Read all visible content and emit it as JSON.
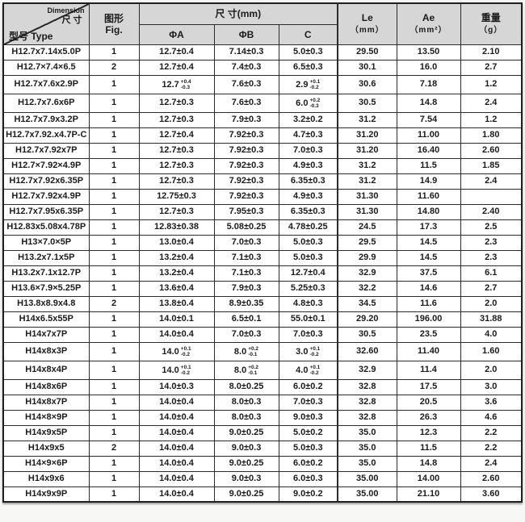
{
  "colors": {
    "header_bg": "#d6d6d6",
    "border": "#2b2b2b"
  },
  "header": {
    "dimension_en": "Dimension",
    "dimension_cn": "尺寸",
    "type_label": "型号 Type",
    "fig_cn": "图形",
    "fig_en": "Fig.",
    "dim_mm": "尺 寸(mm)",
    "phiA": "ΦA",
    "phiB": "ΦB",
    "c": "C",
    "le": "Le",
    "le_unit": "（mm）",
    "ae": "Ae",
    "ae_unit": "（mm²）",
    "wt": "重量",
    "wt_unit": "（g）"
  },
  "columns": [
    "type",
    "fig",
    "phiA",
    "phiB",
    "c",
    "le",
    "ae",
    "wt"
  ],
  "rows": [
    [
      "H12.7x7.14x5.0P",
      "1",
      "12.7±0.4",
      "7.14±0.3",
      "5.0±0.3",
      "29.50",
      "13.50",
      "2.10"
    ],
    [
      "H12.7×7.4×6.5",
      "2",
      "12.7±0.4",
      "7.4±0.3",
      "6.5±0.3",
      "30.1",
      "16.0",
      "2.7"
    ],
    [
      "H12.7x7.6x2.9P",
      "1",
      {
        "v": "12.7",
        "sup": "+0.4",
        "sub": "-0.3"
      },
      "7.6±0.3",
      {
        "v": "2.9",
        "sup": "+0.1",
        "sub": "-0.2"
      },
      "30.6",
      "7.18",
      "1.2"
    ],
    [
      "H12.7x7.6x6P",
      "1",
      "12.7±0.3",
      "7.6±0.3",
      {
        "v": "6.0",
        "sup": "+0.2",
        "sub": "-0.3"
      },
      "30.5",
      "14.8",
      "2.4"
    ],
    [
      "H12.7x7.9x3.2P",
      "1",
      "12.7±0.3",
      "7.9±0.3",
      "3.2±0.2",
      "31.2",
      "7.54",
      "1.2"
    ],
    [
      "H12.7x7.92.x4.7P-C",
      "1",
      "12.7±0.4",
      "7.92±0.3",
      "4.7±0.3",
      "31.20",
      "11.00",
      "1.80"
    ],
    [
      "H12.7x7.92x7P",
      "1",
      "12.7±0.3",
      "7.92±0.3",
      "7.0±0.3",
      "31.20",
      "16.40",
      "2.60"
    ],
    [
      "H12.7×7.92×4.9P",
      "1",
      "12.7±0.3",
      "7.92±0.3",
      "4.9±0.3",
      "31.2",
      "11.5",
      "1.85"
    ],
    [
      "H12.7x7.92x6.35P",
      "1",
      "12.7±0.3",
      "7.92±0.3",
      "6.35±0.3",
      "31.2",
      "14.9",
      "2.4"
    ],
    [
      "H12.7x7.92x4.9P",
      "1",
      "12.75±0.3",
      "7.92±0.3",
      "4.9±0.3",
      "31.30",
      "11.60",
      ""
    ],
    [
      "H12.7x7.95x6.35P",
      "1",
      "12.7±0.3",
      "7.95±0.3",
      "6.35±0.3",
      "31.30",
      "14.80",
      "2.40"
    ],
    [
      "H12.83x5.08x4.78P",
      "1",
      "12.83±0.38",
      "5.08±0.25",
      "4.78±0.25",
      "24.5",
      "17.3",
      "2.5"
    ],
    [
      "H13×7.0×5P",
      "1",
      "13.0±0.4",
      "7.0±0.3",
      "5.0±0.3",
      "29.5",
      "14.5",
      "2.3"
    ],
    [
      "H13.2x7.1x5P",
      "1",
      "13.2±0.4",
      "7.1±0.3",
      "5.0±0.3",
      "29.9",
      "14.5",
      "2.3"
    ],
    [
      "H13.2x7.1x12.7P",
      "1",
      "13.2±0.4",
      "7.1±0.3",
      "12.7±0.4",
      "32.9",
      "37.5",
      "6.1"
    ],
    [
      "H13.6×7.9×5.25P",
      "1",
      "13.6±0.4",
      "7.9±0.3",
      "5.25±0.3",
      "32.2",
      "14.6",
      "2.7"
    ],
    [
      "H13.8x8.9x4.8",
      "2",
      "13.8±0.4",
      "8.9±0.35",
      "4.8±0.3",
      "34.5",
      "11.6",
      "2.0"
    ],
    [
      "H14x6.5x55P",
      "1",
      "14.0±0.1",
      "6.5±0.1",
      "55.0±0.1",
      "29.20",
      "196.00",
      "31.88"
    ],
    [
      "H14x7x7P",
      "1",
      "14.0±0.4",
      "7.0±0.3",
      "7.0±0.3",
      "30.5",
      "23.5",
      "4.0"
    ],
    [
      "H14x8x3P",
      "1",
      {
        "v": "14.0",
        "sup": "+0.1",
        "sub": "-0.2"
      },
      {
        "v": "8.0",
        "sup": "+0.2",
        "sub": "-0.1"
      },
      {
        "v": "3.0",
        "sup": "+0.1",
        "sub": "-0.2"
      },
      "32.60",
      "11.40",
      "1.60"
    ],
    [
      "H14x8x4P",
      "1",
      {
        "v": "14.0",
        "sup": "+0.1",
        "sub": "-0.2"
      },
      {
        "v": "8.0",
        "sup": "+0.2",
        "sub": "-0.1"
      },
      {
        "v": "4.0",
        "sup": "+0.1",
        "sub": "-0.2"
      },
      "32.9",
      "11.4",
      "2.0"
    ],
    [
      "H14x8x6P",
      "1",
      "14.0±0.3",
      "8.0±0.25",
      "6.0±0.2",
      "32.8",
      "17.5",
      "3.0"
    ],
    [
      "H14x8x7P",
      "1",
      "14.0±0.4",
      "8.0±0.3",
      "7.0±0.3",
      "32.8",
      "20.5",
      "3.6"
    ],
    [
      "H14×8×9P",
      "1",
      "14.0±0.4",
      "8.0±0.3",
      "9.0±0.3",
      "32.8",
      "26.3",
      "4.6"
    ],
    [
      "H14x9x5P",
      "1",
      "14.0±0.4",
      "9.0±0.25",
      "5.0±0.2",
      "35.0",
      "12.3",
      "2.2"
    ],
    [
      "H14x9x5",
      "2",
      "14.0±0.4",
      "9.0±0.3",
      "5.0±0.3",
      "35.0",
      "11.5",
      "2.2"
    ],
    [
      "H14×9×6P",
      "1",
      "14.0±0.4",
      "9.0±0.25",
      "6.0±0.2",
      "35.0",
      "14.8",
      "2.4"
    ],
    [
      "H14x9x6",
      "1",
      "14.0±0.4",
      "9.0±0.3",
      "6.0±0.3",
      "35.00",
      "14.00",
      "2.60"
    ],
    [
      "H14x9x9P",
      "1",
      "14.0±0.4",
      "9.0±0.25",
      "9.0±0.2",
      "35.00",
      "21.10",
      "3.60"
    ]
  ]
}
